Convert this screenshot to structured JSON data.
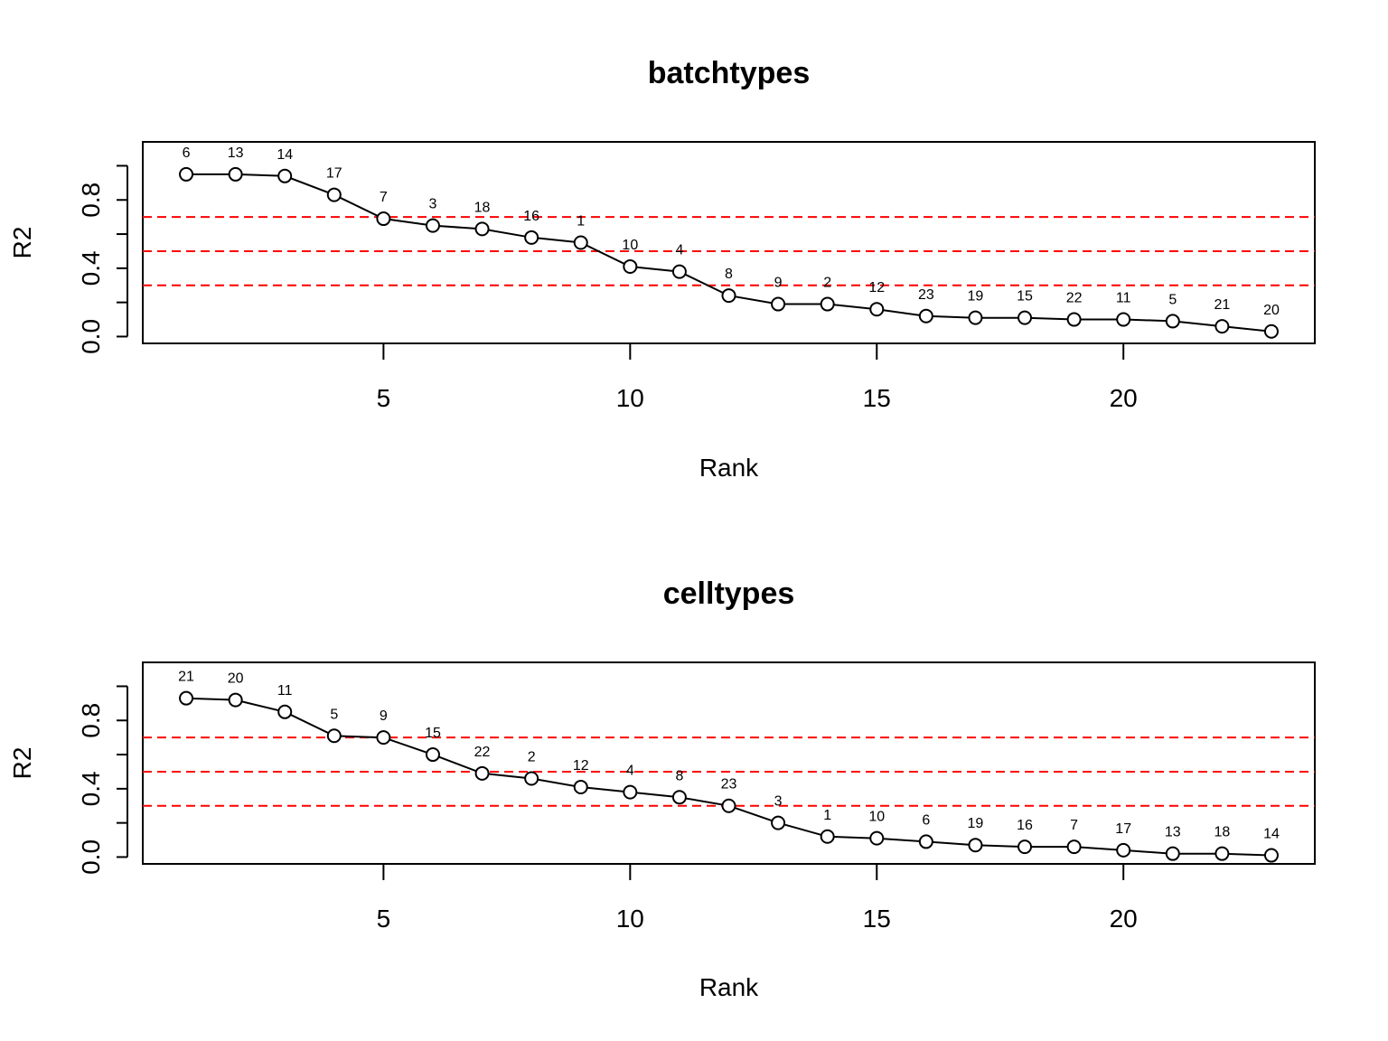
{
  "chart_data": [
    {
      "type": "line",
      "title": "batchtypes",
      "xlabel": "Rank",
      "ylabel": "R2",
      "xlim": [
        0.12,
        23.88
      ],
      "ylim": [
        -0.04,
        1.14
      ],
      "x_ticks": [
        5,
        10,
        15,
        20
      ],
      "y_ticks": [
        0.0,
        0.2,
        0.4,
        0.6,
        0.8,
        1.0
      ],
      "y_tick_labels": [
        "0.0",
        "0.4",
        "0.8"
      ],
      "reference_lines": {
        "y": [
          0.3,
          0.5,
          0.7
        ],
        "color": "#ff0000",
        "style": "dashed"
      },
      "series": [
        {
          "x": [
            1,
            2,
            3,
            4,
            5,
            6,
            7,
            8,
            9,
            10,
            11,
            12,
            13,
            14,
            15,
            16,
            17,
            18,
            19,
            20,
            21,
            22,
            23
          ],
          "values": [
            0.95,
            0.95,
            0.94,
            0.83,
            0.69,
            0.65,
            0.63,
            0.58,
            0.55,
            0.41,
            0.38,
            0.24,
            0.19,
            0.19,
            0.16,
            0.12,
            0.11,
            0.11,
            0.1,
            0.1,
            0.09,
            0.06,
            0.03
          ],
          "labels": [
            "6",
            "13",
            "14",
            "17",
            "7",
            "3",
            "18",
            "16",
            "1",
            "10",
            "4",
            "8",
            "9",
            "2",
            "12",
            "23",
            "19",
            "15",
            "22",
            "11",
            "5",
            "21",
            "20"
          ]
        }
      ]
    },
    {
      "type": "line",
      "title": "celltypes",
      "xlabel": "Rank",
      "ylabel": "R2",
      "xlim": [
        0.12,
        23.88
      ],
      "ylim": [
        -0.04,
        1.14
      ],
      "x_ticks": [
        5,
        10,
        15,
        20
      ],
      "y_ticks": [
        0.0,
        0.2,
        0.4,
        0.6,
        0.8,
        1.0
      ],
      "y_tick_labels": [
        "0.0",
        "0.4",
        "0.8"
      ],
      "reference_lines": {
        "y": [
          0.3,
          0.5,
          0.7
        ],
        "color": "#ff0000",
        "style": "dashed"
      },
      "series": [
        {
          "x": [
            1,
            2,
            3,
            4,
            5,
            6,
            7,
            8,
            9,
            10,
            11,
            12,
            13,
            14,
            15,
            16,
            17,
            18,
            19,
            20,
            21,
            22,
            23
          ],
          "values": [
            0.93,
            0.92,
            0.85,
            0.71,
            0.7,
            0.6,
            0.49,
            0.46,
            0.41,
            0.38,
            0.35,
            0.3,
            0.2,
            0.12,
            0.11,
            0.09,
            0.07,
            0.06,
            0.06,
            0.04,
            0.02,
            0.02,
            0.01
          ],
          "labels": [
            "21",
            "20",
            "11",
            "5",
            "9",
            "15",
            "22",
            "2",
            "12",
            "4",
            "8",
            "23",
            "3",
            "1",
            "10",
            "6",
            "19",
            "16",
            "7",
            "17",
            "13",
            "18",
            "14"
          ]
        }
      ]
    }
  ]
}
